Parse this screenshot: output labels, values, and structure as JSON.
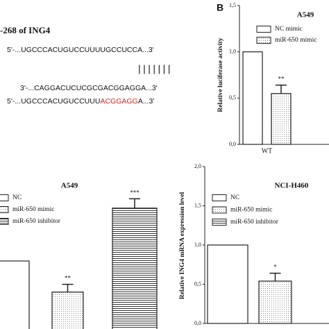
{
  "sequence_panel": {
    "title": "-268 of ING4",
    "wild_line": "5'-...UGCCCACUGUCCUUUUGCCUCCA...3'",
    "pairing": "|||||||",
    "mirna_line": "3'-...CAGGACUCUCGCGACGGAGGA...3'",
    "mutant_line": {
      "start": "5'-...UGCCCACUGUCCUUU",
      "mutated": "ACGGAGG",
      "end": "A...3'",
      "mutated_color": "#e02020"
    }
  },
  "chart_data": [
    {
      "type": "bar",
      "panel_label": "B",
      "title": "A549",
      "ylabel": "Relative luciferase activity",
      "categories": [
        "WT"
      ],
      "ylim": [
        0,
        1.5
      ],
      "yticks": [
        {
          "value": 0,
          "label": "0,0"
        },
        {
          "value": 0.5,
          "label": "0,5"
        },
        {
          "value": 1,
          "label": "1,0"
        },
        {
          "value": 1.5,
          "label": "1,5"
        }
      ],
      "series": [
        {
          "name": "NC mimic",
          "color": "#ffffff",
          "pattern": "solid",
          "values": [
            1.0
          ]
        },
        {
          "name": "miR-650 mimic",
          "color": "#ffffff",
          "pattern": "dots",
          "values": [
            0.55
          ],
          "errors": [
            0.09
          ],
          "annotations": [
            "**"
          ]
        }
      ]
    },
    {
      "type": "bar",
      "title": "A549",
      "categories": [
        null
      ],
      "ylim": [
        0,
        2
      ],
      "series": [
        {
          "name": "NC",
          "color": "#ffffff",
          "pattern": "solid",
          "values": [
            1.0
          ]
        },
        {
          "name": "miR-650 mimic",
          "color": "#ffffff",
          "pattern": "dots",
          "values": [
            0.6
          ],
          "errors": [
            0.1
          ],
          "annotations": [
            "**"
          ]
        },
        {
          "name": "miR-650 inhibitor",
          "color": "#ffffff",
          "pattern": "hlines",
          "values": [
            1.68
          ],
          "errors": [
            0.12
          ],
          "annotations": [
            "***"
          ]
        }
      ]
    },
    {
      "type": "bar",
      "title": "NCI-H460",
      "ylabel": "Relative ING4 mRNA expression level",
      "categories": [
        null
      ],
      "ylim": [
        0,
        2
      ],
      "yticks": [
        {
          "value": 0,
          "label": "0,0"
        },
        {
          "value": 0.5,
          "label": "0,5"
        },
        {
          "value": 1,
          "label": "1,0"
        },
        {
          "value": 1.5,
          "label": "1,5"
        },
        {
          "value": 2,
          "label": "2,0"
        }
      ],
      "series": [
        {
          "name": "NC",
          "color": "#ffffff",
          "pattern": "solid",
          "values": [
            1.0
          ]
        },
        {
          "name": "miR-650 mimic",
          "color": "#ffffff",
          "pattern": "dots",
          "values": [
            0.54
          ],
          "errors": [
            0.1
          ],
          "annotations": [
            "*"
          ]
        },
        {
          "name": "miR-650 inhibitor",
          "color": "#ffffff",
          "pattern": "hlines",
          "values": [
            null
          ]
        }
      ]
    }
  ]
}
